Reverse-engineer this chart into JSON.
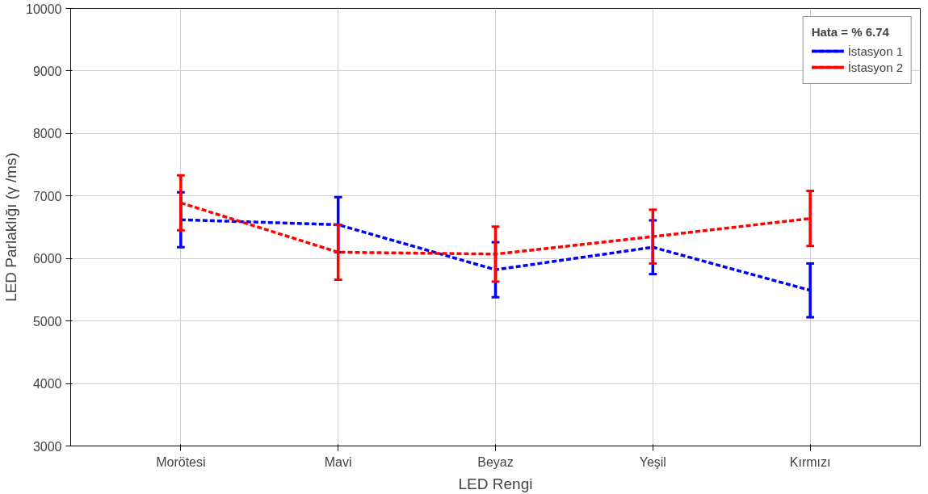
{
  "chart_data": {
    "type": "line",
    "xlabel": "LED Rengi",
    "ylabel": "LED Parlaklığı (γ /ms)",
    "legend_title": "Hata = % 6.74",
    "categories": [
      "Morötesi",
      "Mavi",
      "Beyaz",
      "Yeşil",
      "Kırmızı"
    ],
    "series": [
      {
        "name": "İstasyon 1",
        "color": "#0000ff",
        "values": [
          6620,
          6540,
          5820,
          6180,
          5490
        ],
        "errors": [
          440,
          440,
          440,
          430,
          430
        ]
      },
      {
        "name": "İstasyon 2",
        "color": "#ff0000",
        "values": [
          6890,
          6100,
          6070,
          6350,
          6640
        ],
        "errors": [
          440,
          440,
          440,
          430,
          440
        ]
      }
    ],
    "ylim": [
      3000,
      10000
    ],
    "yticks": [
      3000,
      4000,
      5000,
      6000,
      7000,
      8000,
      9000,
      10000
    ],
    "grid": true,
    "legend": "top right",
    "marker": "none",
    "line_style": "dotted"
  }
}
